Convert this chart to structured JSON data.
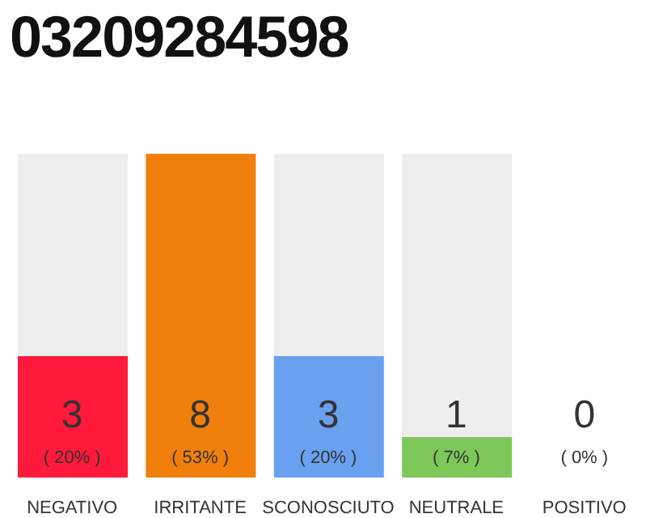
{
  "chart_data": {
    "type": "bar",
    "title": "03209284598",
    "categories": [
      "NEGATIVO",
      "IRRITANTE",
      "SCONOSCIUTO",
      "NEUTRALE",
      "POSITIVO"
    ],
    "values": [
      3,
      8,
      3,
      1,
      0
    ],
    "colors": [
      "#ff1a3c",
      "#f07f0c",
      "#6aa0f0",
      "#7ec85a",
      "#eeeeee"
    ],
    "value_labels": [
      "3\n( 20% )",
      "8\n( 53% )",
      "3\n( 20% )",
      "1\n( 7% )",
      "0\n( 0% )"
    ]
  }
}
